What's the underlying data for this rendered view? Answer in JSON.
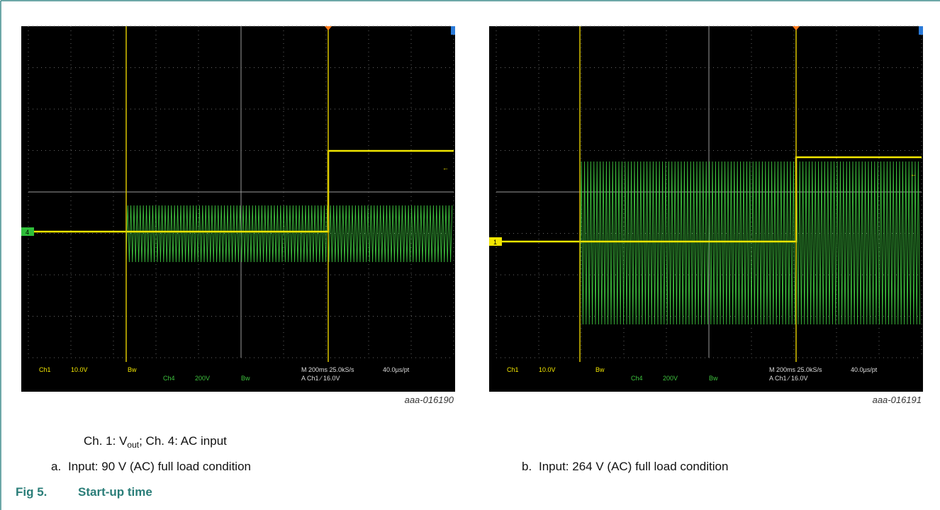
{
  "figure": {
    "number": "Fig 5.",
    "title": "Start-up time",
    "note": {
      "text1": "Ch. 1: V",
      "sub": "out",
      "text2": "; Ch. 4: AC input"
    },
    "panels": [
      {
        "label": "a.",
        "caption": "Input: 90 V (AC) full load condition",
        "image_id": "aaa-016190",
        "scope": {
          "marker": "4",
          "ch1": "Ch1",
          "ch1_scale": "10.0V",
          "bw1": "Bw",
          "ch4": "Ch4",
          "ch4_scale": "200V",
          "bw4": "Bw",
          "timebase": "M 200ms 25.0kS/s",
          "trigger": "A  Ch1  ∕  16.0V",
          "sample": "40.0µs/pt"
        }
      },
      {
        "label": "b.",
        "caption": "Input: 264 V (AC) full load condition",
        "image_id": "aaa-016191",
        "scope": {
          "marker": "1",
          "ch1": "Ch1",
          "ch1_scale": "10.0V",
          "bw1": "Bw",
          "ch4": "Ch4",
          "ch4_scale": "200V",
          "bw4": "Bw",
          "timebase": "M 200ms 25.0kS/s",
          "trigger": "A  Ch1  ∕  16.0V",
          "sample": "40.0µs/pt"
        }
      }
    ]
  }
}
